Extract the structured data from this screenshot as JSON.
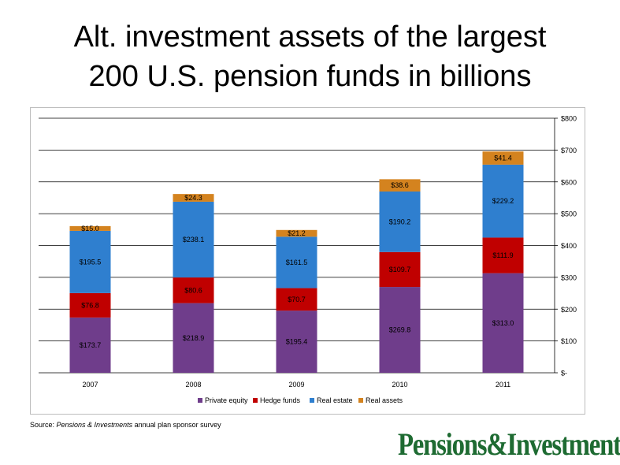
{
  "slide": {
    "title_line1": "Alt. investment assets of the largest",
    "title_line2": "200 U.S. pension funds in billions"
  },
  "source": {
    "prefix": "Source: ",
    "publication": "Pensions & Investments",
    "suffix": " annual plan sponsor survey"
  },
  "logo": {
    "text": "Pensions&Investments",
    "color": "#1e6b32"
  },
  "chart_data": {
    "type": "bar",
    "stacked": true,
    "categories": [
      "2007",
      "2008",
      "2009",
      "2010",
      "2011"
    ],
    "series": [
      {
        "name": "Private equity",
        "color": "#6f3d8b",
        "values": [
          173.7,
          218.9,
          195.4,
          269.8,
          313.0
        ],
        "labels": [
          "$173.7",
          "$218.9",
          "$195.4",
          "$269.8",
          "$313.0"
        ]
      },
      {
        "name": "Hedge funds",
        "color": "#c00000",
        "values": [
          76.8,
          80.6,
          70.7,
          109.7,
          111.9
        ],
        "labels": [
          "$76.8",
          "$80.6",
          "$70.7",
          "$109.7",
          "$111.9"
        ]
      },
      {
        "name": "Real estate",
        "color": "#2f7fcf",
        "values": [
          195.5,
          238.1,
          161.5,
          190.2,
          229.2
        ],
        "labels": [
          "$195.5",
          "$238.1",
          "$161.5",
          "$190.2",
          "$229.2"
        ]
      },
      {
        "name": "Real assets",
        "color": "#d4831f",
        "values": [
          15.0,
          24.3,
          21.2,
          38.6,
          41.4
        ],
        "labels": [
          "$15.0",
          "$24.3",
          "$21.2",
          "$38.6",
          "$41.4"
        ]
      }
    ],
    "ylim": [
      0,
      800
    ],
    "y_ticks": [
      0,
      100,
      200,
      300,
      400,
      500,
      600,
      700,
      800
    ],
    "y_tick_labels": [
      "$-",
      "$100",
      "$200",
      "$300",
      "$400",
      "$500",
      "$600",
      "$700",
      "$800"
    ],
    "y_axis_side": "right",
    "grid": true,
    "legend_position": "bottom"
  }
}
